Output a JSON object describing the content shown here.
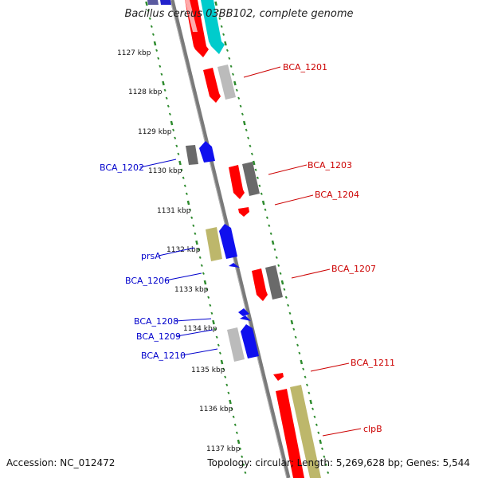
{
  "title": "Bacillus cereus 03BB102, complete genome",
  "accession_text": "Accession: NC_012472",
  "summary_text": "Topology: circular; Length: 5,269,628 bp; Genes: 5,544",
  "colors": {
    "backbone": "#808080",
    "tick": "#2e8b2e",
    "forward_label": "#cc0000",
    "reverse_label": "#0000cc",
    "red": "#ff0000",
    "blue": "#0000ff",
    "grey": "#666666",
    "lightgrey": "#bbbbbb",
    "khaki": "#bdb76b",
    "cyan": "#00cccc",
    "pink": "#ffaaaa",
    "navy": "#6666aa"
  },
  "ticks": [
    {
      "label": "1127 kbp"
    },
    {
      "label": "1128 kbp"
    },
    {
      "label": "1129 kbp"
    },
    {
      "label": "1130 kbp"
    },
    {
      "label": "1131 kbp"
    },
    {
      "label": "1132 kbp"
    },
    {
      "label": "1133 kbp"
    },
    {
      "label": "1134 kbp"
    },
    {
      "label": "1135 kbp"
    },
    {
      "label": "1136 kbp"
    },
    {
      "label": "1137 kbp"
    }
  ],
  "forward_labels": [
    "BCA_1201",
    "BCA_1203",
    "BCA_1204",
    "BCA_1207",
    "BCA_1211",
    "clpB"
  ],
  "reverse_labels": [
    "BCA_1202",
    "prsA",
    "BCA_1206",
    "BCA_1208",
    "BCA_1209",
    "BCA_1210"
  ]
}
